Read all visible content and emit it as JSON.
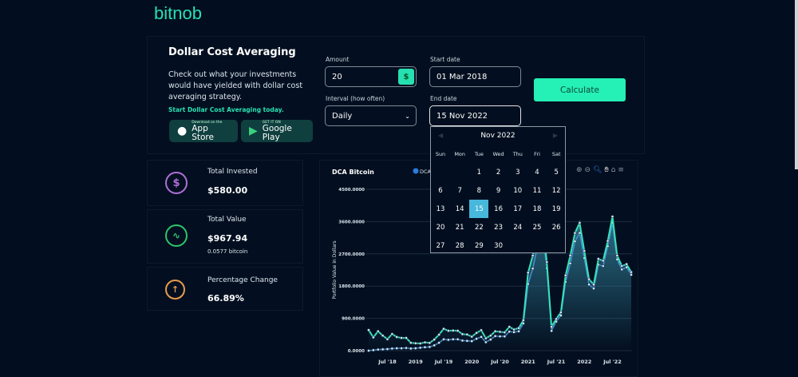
{
  "brand": {
    "logo": "bitnob"
  },
  "intro": {
    "title": "Dollar Cost Averaging",
    "description": "Check out what your investments would have yielded with dollar cost averaging strategy.",
    "cta": "Start Dollar Cost Averaging today.",
    "app_store": {
      "small": "Download on the",
      "large": "App Store"
    },
    "google_play": {
      "small": "GET IT ON",
      "large": "Google Play"
    }
  },
  "form": {
    "amount_label": "Amount",
    "amount_value": "20",
    "currency_symbol": "$",
    "interval_label": "Interval (how often)",
    "interval_value": "Daily",
    "start_label": "Start date",
    "start_value": "01 Mar 2018",
    "end_label": "End date",
    "end_value": "15 Nov 2022",
    "calculate": "Calculate"
  },
  "calendar": {
    "month": "Nov 2022",
    "prev": "◀",
    "next": "▶",
    "weekdays": [
      "Sun",
      "Mon",
      "Tue",
      "Wed",
      "Thu",
      "Fri",
      "Sat"
    ],
    "first_weekday": 2,
    "days": 30,
    "selected": 15
  },
  "stats": [
    {
      "label": "Total Invested",
      "value": "$580.00",
      "icon": "dollar-circle-icon",
      "color": "#b06fd8"
    },
    {
      "label": "Total Value",
      "value": "$967.94",
      "sub": "0.0577 bitcoin",
      "icon": "pulse-icon",
      "color": "#2fc46a"
    },
    {
      "label": "Percentage Change",
      "value": "66.89%",
      "icon": "arrow-up-circle-icon",
      "color": "#e89a4d"
    }
  ],
  "chart_data": {
    "type": "area",
    "title": "DCA Bitcoin",
    "legend": [
      "DCA"
    ],
    "ylabel": "Portfolio Value in Dollars",
    "ylim": [
      0,
      4500
    ],
    "yticks": [
      "0.0000",
      "900.0000",
      "1800.0000",
      "2700.0000",
      "3600.0000",
      "4500.0000"
    ],
    "xticks": [
      {
        "label": "Jul '18",
        "x": "2018-07"
      },
      {
        "label": "2019",
        "x": "2019-01"
      },
      {
        "label": "Jul '19",
        "x": "2019-07"
      },
      {
        "label": "2020",
        "x": "2020-01"
      },
      {
        "label": "Jul '20",
        "x": "2020-07"
      },
      {
        "label": "2021",
        "x": "2021-01"
      },
      {
        "label": "Jul '21",
        "x": "2021-07"
      },
      {
        "label": "2022",
        "x": "2022-01"
      },
      {
        "label": "Jul '22",
        "x": "2022-07"
      }
    ],
    "x_start": "2018-03",
    "x_end": "2022-11",
    "series": [
      {
        "color": "#35e3b8",
        "values": [
          575,
          370,
          540,
          420,
          320,
          465,
          380,
          355,
          355,
          220,
          205,
          200,
          230,
          215,
          310,
          445,
          610,
          555,
          560,
          555,
          460,
          450,
          390,
          495,
          570,
          345,
          420,
          540,
          525,
          510,
          665,
          590,
          630,
          850,
          2176,
          2650,
          3400,
          3700,
          2470,
          665,
          885,
          1070,
          2100,
          2655,
          3283,
          3563,
          2781,
          1992,
          1844,
          2560,
          2508,
          3061,
          3740,
          2655,
          2360,
          2412,
          2191
        ]
      },
      {
        "color": "#4a8fd8",
        "values": [
          0,
          15,
          30,
          37,
          44,
          59,
          66,
          66,
          74,
          59,
          66,
          81,
          96,
          103,
          148,
          221,
          317,
          302,
          317,
          317,
          280,
          273,
          265,
          332,
          384,
          236,
          310,
          406,
          398,
          398,
          531,
          516,
          539,
          760,
          1860,
          2290,
          2900,
          3400,
          2300,
          553,
          811,
          981,
          1918,
          2434,
          3047,
          3283,
          2582,
          1844,
          1734,
          2397,
          2360,
          2914,
          3563,
          2545,
          2265,
          2324,
          2117
        ]
      }
    ]
  },
  "toolbar": [
    "zoom-in-icon",
    "zoom-out-icon",
    "selection-zoom-icon",
    "pan-icon",
    "home-icon",
    "menu-icon"
  ]
}
